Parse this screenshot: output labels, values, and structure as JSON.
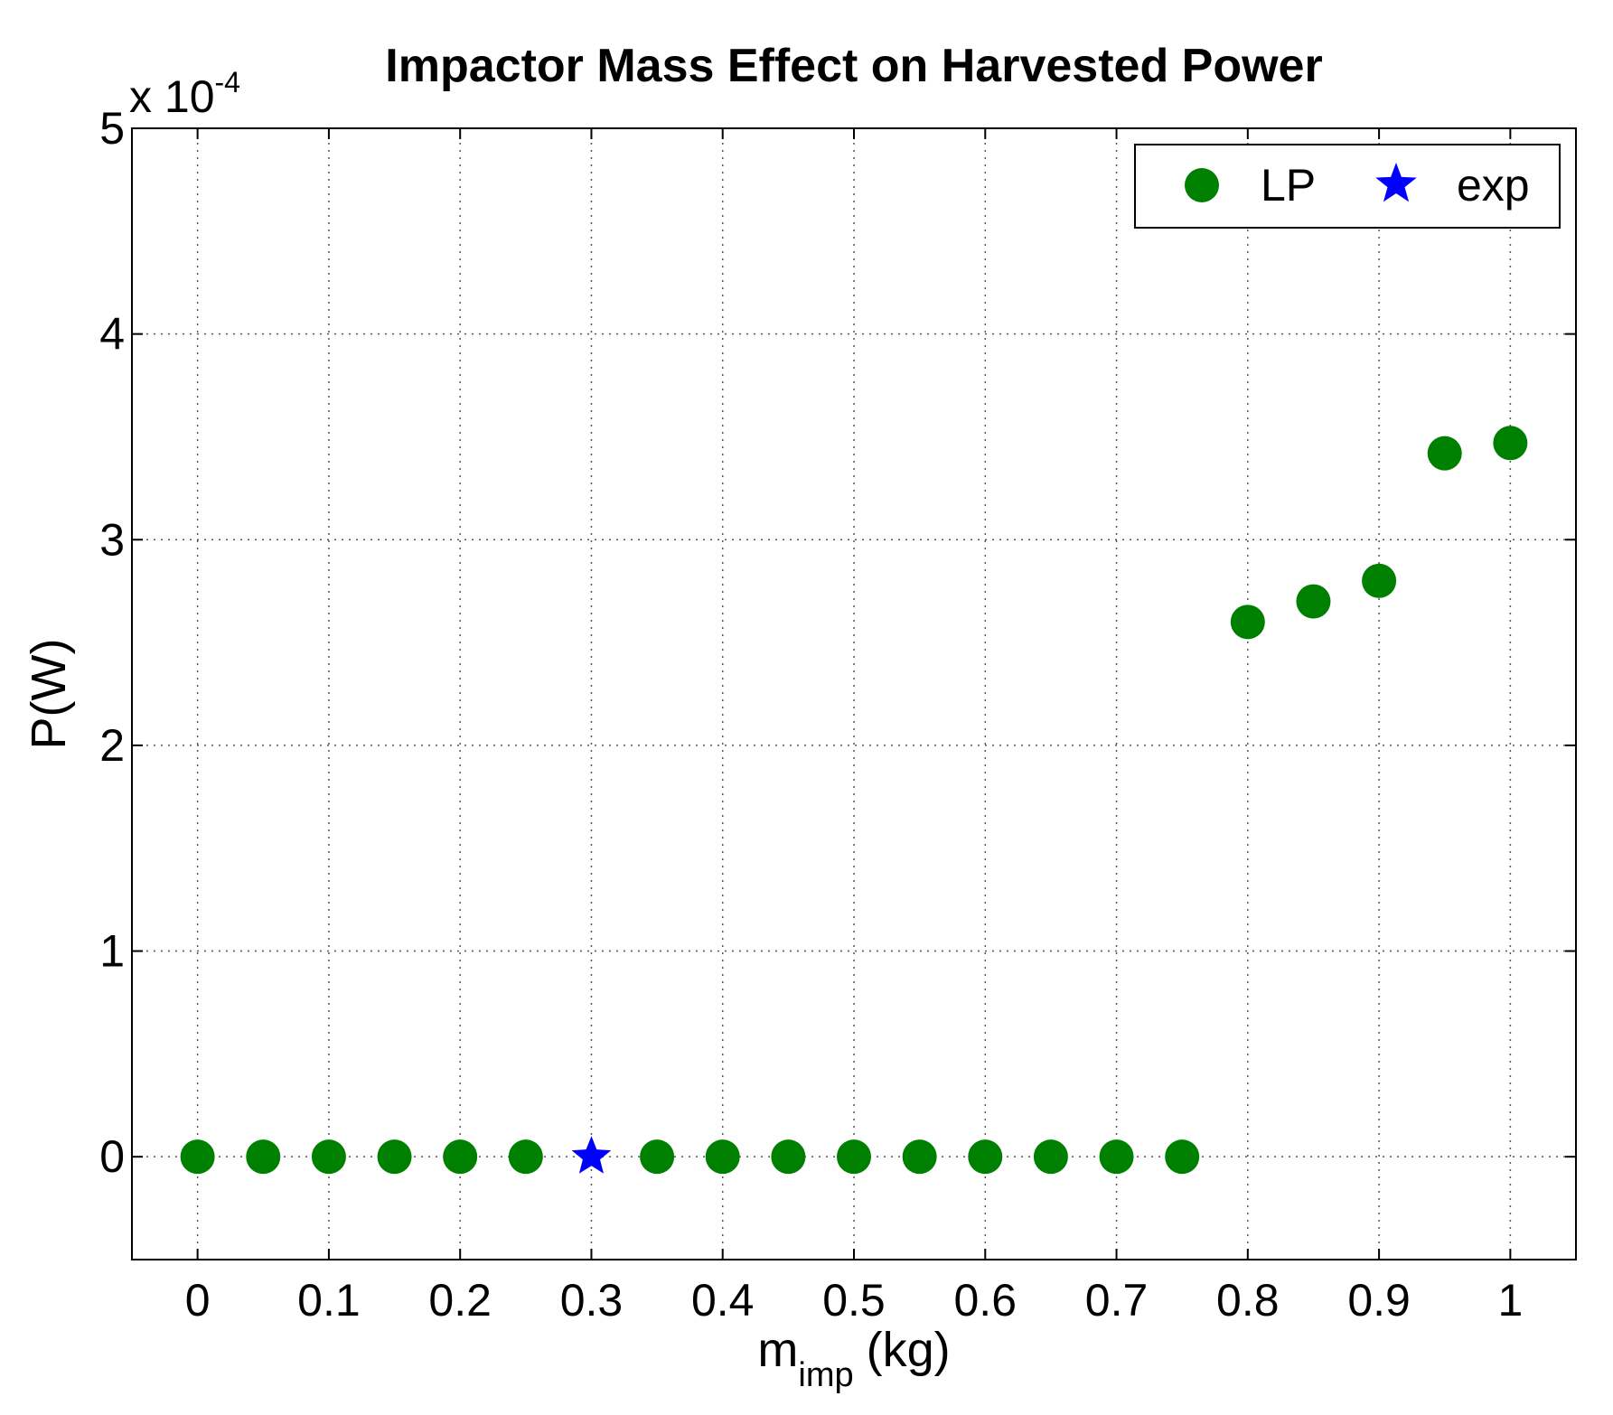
{
  "chart_data": {
    "type": "scatter",
    "title": "Impactor Mass Effect on Harvested Power",
    "xlabel": {
      "base": "m",
      "subscript": "imp",
      "unit": "(kg)"
    },
    "ylabel": "P(W)",
    "y_multiplier": {
      "base": "x 10",
      "exponent": "-4"
    },
    "xlim": [
      -0.05,
      1.05
    ],
    "ylim": [
      -0.5,
      5
    ],
    "xticks": [
      0,
      0.1,
      0.2,
      0.3,
      0.4,
      0.5,
      0.6,
      0.7,
      0.8,
      0.9,
      1
    ],
    "xtick_labels": [
      "0",
      "0.1",
      "0.2",
      "0.3",
      "0.4",
      "0.5",
      "0.6",
      "0.7",
      "0.8",
      "0.9",
      "1"
    ],
    "yticks": [
      0,
      1,
      2,
      3,
      4,
      5
    ],
    "ytick_labels": [
      "0",
      "1",
      "2",
      "3",
      "4",
      "5"
    ],
    "grid": true,
    "legend_position": "top-right",
    "series": [
      {
        "name": "LP",
        "marker": "circle",
        "color": "#008000",
        "x": [
          0,
          0.05,
          0.1,
          0.15,
          0.2,
          0.25,
          0.35,
          0.4,
          0.45,
          0.5,
          0.55,
          0.6,
          0.65,
          0.7,
          0.75,
          0.8,
          0.85,
          0.9,
          0.95,
          1.0
        ],
        "y": [
          0,
          0,
          0,
          0,
          0,
          0,
          0,
          0,
          0,
          0,
          0,
          0,
          0,
          0,
          0,
          2.6,
          2.7,
          2.8,
          3.42,
          3.47
        ]
      },
      {
        "name": "exp",
        "marker": "star",
        "color": "#0000ff",
        "x": [
          0.3
        ],
        "y": [
          0
        ]
      }
    ]
  }
}
